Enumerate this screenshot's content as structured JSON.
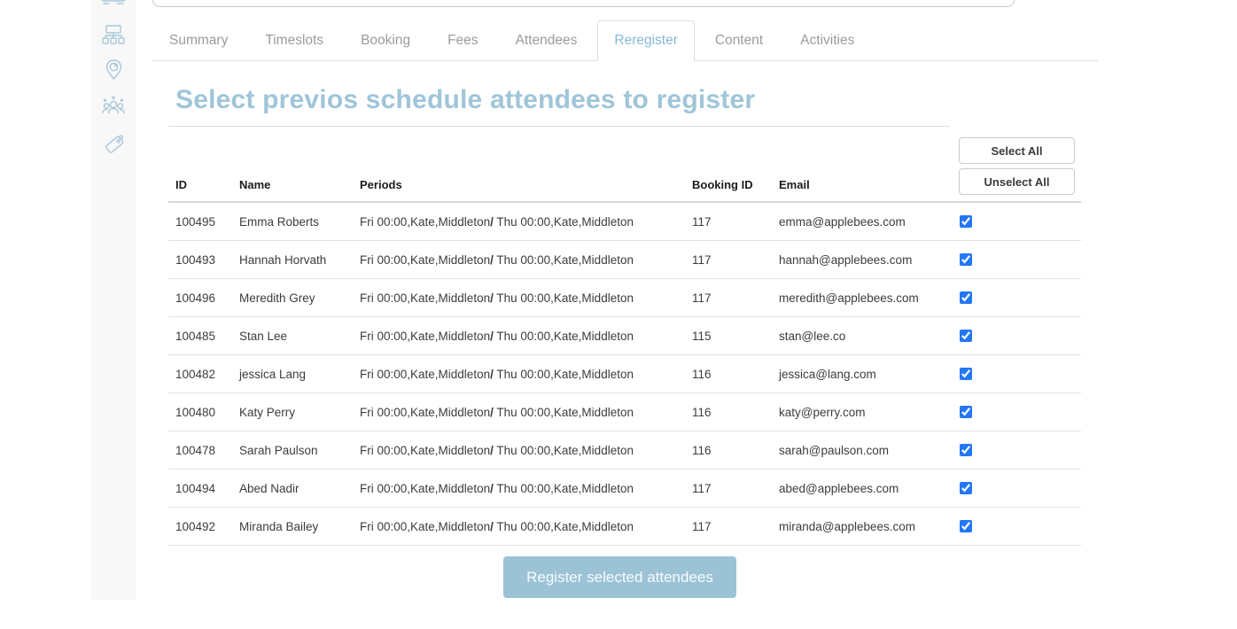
{
  "sidebar": {
    "icons": [
      {
        "name": "keypad-card-icon"
      },
      {
        "name": "sitemap-icon"
      },
      {
        "name": "location-pin-icon"
      },
      {
        "name": "people-group-icon"
      },
      {
        "name": "tag-icon"
      }
    ]
  },
  "tabs": {
    "items": [
      {
        "label": "Summary",
        "active": false
      },
      {
        "label": "Timeslots",
        "active": false
      },
      {
        "label": "Booking",
        "active": false
      },
      {
        "label": "Fees",
        "active": false
      },
      {
        "label": "Attendees",
        "active": false
      },
      {
        "label": "Reregister",
        "active": true
      },
      {
        "label": "Content",
        "active": false
      },
      {
        "label": "Activities",
        "active": false
      }
    ]
  },
  "content": {
    "heading": "Select previos schedule attendees to register",
    "select_all_label": "Select All",
    "unselect_all_label": "Unselect All",
    "register_button_label": "Register selected attendees"
  },
  "table": {
    "columns": [
      "ID",
      "Name",
      "Periods",
      "Booking ID",
      "Email"
    ],
    "period_separator": "/",
    "rows": [
      {
        "id": "100495",
        "name": "Emma Roberts",
        "period1": "Fri 00:00,Kate,Middleton",
        "period2": "Thu 00:00,Kate,Middleton",
        "booking_id": "117",
        "email": "emma@applebees.com",
        "checked": true
      },
      {
        "id": "100493",
        "name": "Hannah Horvath",
        "period1": "Fri 00:00,Kate,Middleton",
        "period2": "Thu 00:00,Kate,Middleton",
        "booking_id": "117",
        "email": "hannah@applebees.com",
        "checked": true
      },
      {
        "id": "100496",
        "name": "Meredith Grey",
        "period1": "Fri 00:00,Kate,Middleton",
        "period2": "Thu 00:00,Kate,Middleton",
        "booking_id": "117",
        "email": "meredith@applebees.com",
        "checked": true
      },
      {
        "id": "100485",
        "name": "Stan Lee",
        "period1": "Fri 00:00,Kate,Middleton",
        "period2": "Thu 00:00,Kate,Middleton",
        "booking_id": "115",
        "email": "stan@lee.co",
        "checked": true
      },
      {
        "id": "100482",
        "name": "jessica Lang",
        "period1": "Fri 00:00,Kate,Middleton",
        "period2": "Thu 00:00,Kate,Middleton",
        "booking_id": "116",
        "email": "jessica@lang.com",
        "checked": true
      },
      {
        "id": "100480",
        "name": "Katy Perry",
        "period1": "Fri 00:00,Kate,Middleton",
        "period2": "Thu 00:00,Kate,Middleton",
        "booking_id": "116",
        "email": "katy@perry.com",
        "checked": true
      },
      {
        "id": "100478",
        "name": "Sarah Paulson",
        "period1": "Fri 00:00,Kate,Middleton",
        "period2": "Thu 00:00,Kate,Middleton",
        "booking_id": "116",
        "email": "sarah@paulson.com",
        "checked": true
      },
      {
        "id": "100494",
        "name": "Abed Nadir",
        "period1": "Fri 00:00,Kate,Middleton",
        "period2": "Thu 00:00,Kate,Middleton",
        "booking_id": "117",
        "email": "abed@applebees.com",
        "checked": true
      },
      {
        "id": "100492",
        "name": "Miranda Bailey",
        "period1": "Fri 00:00,Kate,Middleton",
        "period2": "Thu 00:00,Kate,Middleton",
        "booking_id": "117",
        "email": "miranda@applebees.com",
        "checked": true
      }
    ]
  },
  "colors": {
    "heading_blue": "#9fc5d8",
    "active_tab_blue": "#85b8d6",
    "register_button_bg": "#9cc2d6",
    "checkbox_blue": "#2277f4",
    "sidebar_bg": "#f8f8f8",
    "icon_blue": "#a9c7d9"
  }
}
